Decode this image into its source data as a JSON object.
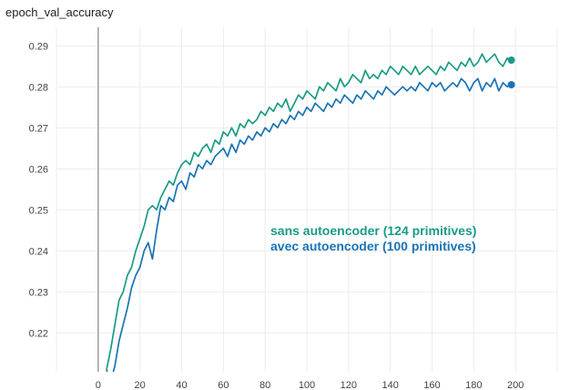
{
  "title": "epoch_val_accuracy",
  "chart_data": {
    "type": "line",
    "title": "epoch_val_accuracy",
    "xlabel": "",
    "ylabel": "",
    "xlim": [
      -20,
      220
    ],
    "ylim": [
      0.2105,
      0.2945
    ],
    "x_ticks": [
      0,
      20,
      40,
      60,
      80,
      100,
      120,
      140,
      160,
      180,
      200
    ],
    "y_ticks": [
      0.22,
      0.23,
      0.24,
      0.25,
      0.26,
      0.27,
      0.28,
      0.29
    ],
    "x_tick_labels": [
      "0",
      "20",
      "40",
      "60",
      "80",
      "100",
      "120",
      "140",
      "160",
      "180",
      "200"
    ],
    "y_tick_labels": [
      "0.22",
      "0.23",
      "0.24",
      "0.25",
      "0.26",
      "0.27",
      "0.28",
      "0.29"
    ],
    "grid": true,
    "legend_position": "center-right",
    "series": [
      {
        "name": "sans autoencoder (124 primitives)",
        "color": "#1a9b84",
        "x": [
          4,
          6,
          8,
          10,
          12,
          14,
          16,
          18,
          20,
          22,
          24,
          26,
          28,
          30,
          32,
          34,
          36,
          38,
          40,
          42,
          44,
          46,
          48,
          50,
          52,
          54,
          56,
          58,
          60,
          62,
          64,
          66,
          68,
          70,
          72,
          74,
          76,
          78,
          80,
          82,
          84,
          86,
          88,
          90,
          92,
          94,
          96,
          98,
          100,
          102,
          104,
          106,
          108,
          110,
          112,
          114,
          116,
          118,
          120,
          122,
          124,
          126,
          128,
          130,
          132,
          134,
          136,
          138,
          140,
          142,
          144,
          146,
          148,
          150,
          152,
          154,
          156,
          158,
          160,
          162,
          164,
          166,
          168,
          170,
          172,
          174,
          176,
          178,
          180,
          182,
          184,
          186,
          188,
          190,
          192,
          194,
          196,
          198
        ],
        "values": [
          0.211,
          0.216,
          0.222,
          0.228,
          0.23,
          0.234,
          0.236,
          0.24,
          0.243,
          0.246,
          0.25,
          0.251,
          0.25,
          0.253,
          0.255,
          0.257,
          0.256,
          0.259,
          0.261,
          0.262,
          0.261,
          0.264,
          0.263,
          0.265,
          0.266,
          0.264,
          0.267,
          0.266,
          0.269,
          0.268,
          0.27,
          0.268,
          0.271,
          0.27,
          0.272,
          0.271,
          0.272,
          0.274,
          0.273,
          0.275,
          0.274,
          0.276,
          0.275,
          0.277,
          0.274,
          0.276,
          0.278,
          0.277,
          0.279,
          0.278,
          0.277,
          0.28,
          0.279,
          0.281,
          0.28,
          0.279,
          0.282,
          0.28,
          0.281,
          0.283,
          0.282,
          0.281,
          0.284,
          0.282,
          0.283,
          0.282,
          0.284,
          0.283,
          0.285,
          0.284,
          0.283,
          0.285,
          0.284,
          0.283,
          0.285,
          0.283,
          0.284,
          0.285,
          0.284,
          0.283,
          0.285,
          0.284,
          0.286,
          0.285,
          0.284,
          0.286,
          0.285,
          0.287,
          0.285,
          0.286,
          0.288,
          0.286,
          0.287,
          0.288,
          0.286,
          0.285,
          0.287,
          0.286
        ]
      },
      {
        "name": "avec autoencoder (100 primitives)",
        "color": "#1a73b5",
        "x": [
          4,
          6,
          8,
          10,
          12,
          14,
          16,
          18,
          20,
          22,
          24,
          26,
          28,
          30,
          32,
          34,
          36,
          38,
          40,
          42,
          44,
          46,
          48,
          50,
          52,
          54,
          56,
          58,
          60,
          62,
          64,
          66,
          68,
          70,
          72,
          74,
          76,
          78,
          80,
          82,
          84,
          86,
          88,
          90,
          92,
          94,
          96,
          98,
          100,
          102,
          104,
          106,
          108,
          110,
          112,
          114,
          116,
          118,
          120,
          122,
          124,
          126,
          128,
          130,
          132,
          134,
          136,
          138,
          140,
          142,
          144,
          146,
          148,
          150,
          152,
          154,
          156,
          158,
          160,
          162,
          164,
          166,
          168,
          170,
          172,
          174,
          176,
          178,
          180,
          182,
          184,
          186,
          188,
          190,
          192,
          194,
          196,
          198
        ],
        "values": [
          0.211,
          0.208,
          0.212,
          0.218,
          0.222,
          0.226,
          0.231,
          0.234,
          0.236,
          0.24,
          0.242,
          0.238,
          0.245,
          0.251,
          0.25,
          0.253,
          0.252,
          0.256,
          0.257,
          0.255,
          0.259,
          0.258,
          0.261,
          0.26,
          0.262,
          0.261,
          0.263,
          0.264,
          0.265,
          0.263,
          0.266,
          0.264,
          0.267,
          0.266,
          0.268,
          0.267,
          0.269,
          0.268,
          0.27,
          0.269,
          0.271,
          0.27,
          0.272,
          0.271,
          0.273,
          0.272,
          0.274,
          0.273,
          0.275,
          0.274,
          0.276,
          0.275,
          0.274,
          0.276,
          0.275,
          0.277,
          0.276,
          0.278,
          0.277,
          0.276,
          0.278,
          0.277,
          0.279,
          0.278,
          0.277,
          0.279,
          0.278,
          0.28,
          0.279,
          0.278,
          0.279,
          0.28,
          0.279,
          0.28,
          0.279,
          0.281,
          0.28,
          0.279,
          0.281,
          0.28,
          0.281,
          0.279,
          0.28,
          0.281,
          0.28,
          0.282,
          0.281,
          0.279,
          0.281,
          0.282,
          0.279,
          0.281,
          0.28,
          0.282,
          0.279,
          0.281,
          0.28,
          0.281
        ]
      }
    ],
    "end_markers": [
      {
        "series": 0,
        "x": 198,
        "y": 0.2865
      },
      {
        "series": 1,
        "x": 198,
        "y": 0.2805
      }
    ]
  }
}
